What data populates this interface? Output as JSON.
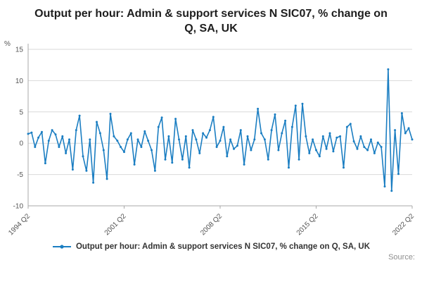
{
  "title": "Output per hour: Admin & support services N SIC07, % change on Q, SA, UK",
  "legend": {
    "label": "Output per hour: Admin & support services N SIC07, % change on Q, SA, UK"
  },
  "source_label": "Source:",
  "chart_data": {
    "type": "line",
    "title": "Output per hour: Admin & support services N SIC07, % change on Q, SA, UK",
    "xlabel": "",
    "ylabel": "%",
    "ylim": [
      -10,
      15
    ],
    "yticks": [
      -10,
      -5,
      0,
      5,
      10,
      15
    ],
    "grid": "horizontal",
    "legend_position": "bottom",
    "line_color": "#1b7ec2",
    "grid_color": "#d9d9d9",
    "axis_color": "#a8a8a8",
    "tick_color": "#555555",
    "x_tick_labels": [
      "1994 Q2",
      "2001 Q2",
      "2008 Q2",
      "2015 Q2",
      "2022 Q2"
    ],
    "x_tick_indices": [
      0,
      28,
      56,
      84,
      112
    ],
    "series": [
      {
        "name": "Output per hour: Admin & support services N SIC07, % change on Q, SA, UK",
        "color": "#1b7ec2",
        "values": [
          1.5,
          1.7,
          -0.6,
          0.9,
          1.8,
          -3.2,
          0.4,
          2.1,
          1.4,
          -0.6,
          1.1,
          -1.6,
          0.6,
          -4.2,
          2.1,
          4.4,
          -2.1,
          -4.4,
          0.6,
          -6.3,
          3.4,
          1.6,
          -1.1,
          -5.7,
          4.7,
          1.1,
          0.4,
          -0.6,
          -1.4,
          0.6,
          1.6,
          -3.4,
          0.6,
          -0.6,
          1.9,
          0.4,
          -1.1,
          -4.4,
          2.6,
          4.1,
          -2.6,
          1.1,
          -3.1,
          3.9,
          0.6,
          -2.6,
          1.1,
          -3.9,
          2.1,
          0.6,
          -1.6,
          1.6,
          0.9,
          2.1,
          4.2,
          -0.6,
          0.4,
          2.6,
          -2.1,
          0.6,
          -0.9,
          -0.4,
          2.1,
          -3.4,
          1.1,
          -1.1,
          0.6,
          5.5,
          1.6,
          0.6,
          -2.6,
          2.1,
          4.6,
          -1.1,
          1.6,
          3.6,
          -3.9,
          2.6,
          6.0,
          -2.6,
          6.3,
          1.1,
          -1.6,
          0.6,
          -1.1,
          -2.1,
          1.1,
          -0.9,
          1.6,
          -1.3,
          0.9,
          1.1,
          -3.9,
          2.6,
          3.1,
          0.3,
          -0.9,
          1.1,
          -0.6,
          -1.1,
          0.6,
          -1.6,
          0.1,
          -0.6,
          -6.9,
          11.8,
          -7.6,
          2.1,
          -4.9,
          4.8,
          1.6,
          2.4,
          0.6
        ]
      }
    ]
  }
}
